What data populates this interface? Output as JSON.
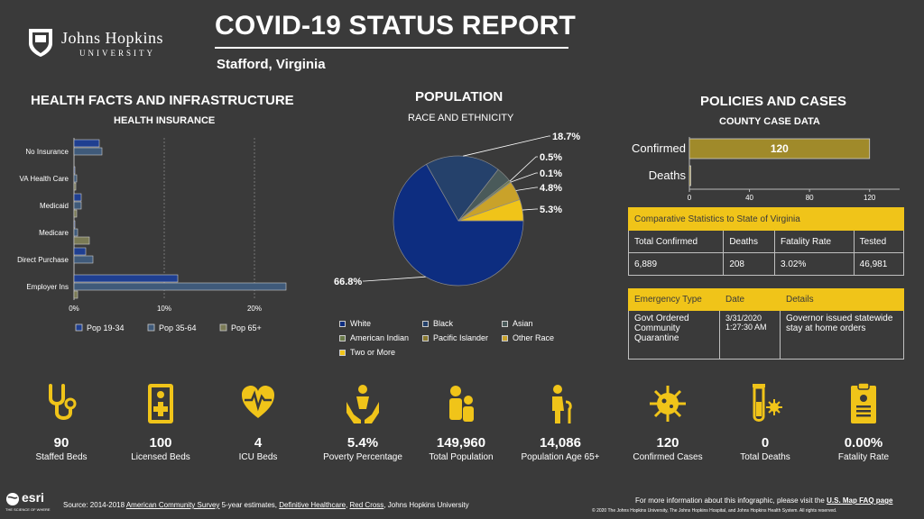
{
  "header": {
    "university_name": "Johns Hopkins",
    "university_sub": "UNIVERSITY",
    "title": "COVID-19 STATUS REPORT",
    "location": "Stafford,  Virginia"
  },
  "health": {
    "section_title": "HEALTH FACTS AND INFRASTRUCTURE",
    "chart_title": "HEALTH INSURANCE"
  },
  "population": {
    "section_title": "POPULATION",
    "chart_title": "RACE AND ETHNICITY"
  },
  "policies": {
    "section_title": "POLICIES AND CASES",
    "chart_title": "COUNTY CASE DATA",
    "comparative": {
      "title": "Comparative Statistics to State of Virginia",
      "headers": [
        "Total Confirmed",
        "Deaths",
        "Fatality Rate",
        "Tested"
      ],
      "values": [
        "6,889",
        "208",
        "3.02%",
        "46,981"
      ]
    },
    "emergency": {
      "headers": [
        "Emergency Type",
        "Date",
        "Details"
      ],
      "type": "Govt Ordered Community Quarantine",
      "date": "3/31/2020 1:27:30 AM",
      "details": "Governor issued statewide stay at home orders"
    }
  },
  "chart_data": [
    {
      "type": "bar",
      "orientation": "horizontal",
      "title": "HEALTH INSURANCE",
      "categories": [
        "No Insurance",
        "VA Health Care",
        "Medicaid",
        "Medicare",
        "Direct Purchase",
        "Employer Ins"
      ],
      "series": [
        {
          "name": "Pop 19-34",
          "values": [
            2.8,
            0.1,
            0.8,
            0.1,
            1.3,
            11.5
          ],
          "color": "#1f3f91"
        },
        {
          "name": "Pop 35-64",
          "values": [
            3.1,
            0.3,
            0.8,
            0.4,
            2.1,
            23.5
          ],
          "color": "#3f5a7a"
        },
        {
          "name": "Pop 65+",
          "values": [
            0.0,
            0.2,
            0.3,
            1.7,
            0.0,
            0.4
          ],
          "color": "#7a7a55"
        }
      ],
      "xticks": [
        "0%",
        "10%",
        "20%"
      ],
      "xlim": [
        0,
        25
      ],
      "legend": "bottom"
    },
    {
      "type": "pie",
      "title": "RACE AND ETHNICITY",
      "slices": [
        {
          "name": "White",
          "value": 66.8,
          "label": "66.8%",
          "color": "#0d2d80"
        },
        {
          "name": "Black",
          "value": 18.7,
          "label": "18.7%",
          "color": "#25416b"
        },
        {
          "name": "Asian",
          "value": 3.8,
          "label": "",
          "color": "#4a5a5a"
        },
        {
          "name": "American Indian",
          "value": 0.5,
          "label": "0.5%",
          "color": "#6a7a4a"
        },
        {
          "name": "Pacific Islander",
          "value": 0.1,
          "label": "0.1%",
          "color": "#8a7a30"
        },
        {
          "name": "Other Race",
          "value": 4.8,
          "label": "4.8%",
          "color": "#c9a22a"
        },
        {
          "name": "Two or More",
          "value": 5.3,
          "label": "5.3%",
          "color": "#f0c419"
        }
      ],
      "legend": "bottom"
    },
    {
      "type": "bar",
      "orientation": "horizontal",
      "title": "COUNTY CASE DATA",
      "categories": [
        "Confirmed",
        "Deaths"
      ],
      "values": [
        120,
        0
      ],
      "data_labels": [
        "120",
        ""
      ],
      "xticks": [
        "0",
        "40",
        "80",
        "120"
      ],
      "xlim": [
        0,
        140
      ],
      "color": "#a08a2a"
    }
  ],
  "tiles": [
    {
      "icon": "stethoscope-icon",
      "value": "90",
      "label": "Staffed Beds"
    },
    {
      "icon": "licensed-bed-icon",
      "value": "100",
      "label": "Licensed Beds"
    },
    {
      "icon": "heart-pulse-icon",
      "value": "4",
      "label": "ICU Beds"
    },
    {
      "icon": "helping-hands-icon",
      "value": "5.4%",
      "label": "Poverty Percentage"
    },
    {
      "icon": "family-icon",
      "value": "149,960",
      "label": "Total Population"
    },
    {
      "icon": "elderly-icon",
      "value": "14,086",
      "label": "Population Age 65+"
    },
    {
      "icon": "virus-icon",
      "value": "120",
      "label": "Confirmed Cases"
    },
    {
      "icon": "test-tube-icon",
      "value": "0",
      "label": "Total Deaths"
    },
    {
      "icon": "clipboard-icon",
      "value": "0.00%",
      "label": "Fatality Rate"
    }
  ],
  "footer": {
    "esri": "esri",
    "esri_tag": "THE SCIENCE OF WHERE",
    "source_prefix": "Source: 2014-2018 ",
    "acs_link": "American Community Survey",
    "source_mid": " 5-year estimates, ",
    "dh_link": "Definitive Healthcare",
    "comma": ", ",
    "rc_link": "Red Cross",
    "source_end": ", Johns Hopkins University",
    "info_prefix": "For more information about this infographic, please visit the ",
    "faq_link": "U.S. Map FAQ page",
    "copyright": "© 2020 The Johns Hopkins University, The Johns Hopkins Hospital, and Johns Hopkins Health System. All rights reserved."
  },
  "colors": {
    "background": "#3a3a3a",
    "accent_yellow": "#f0c419",
    "navy": "#0d2d80"
  }
}
